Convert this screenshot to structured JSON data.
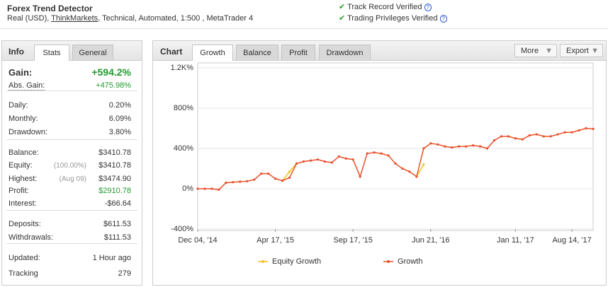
{
  "header": {
    "title": "Forex Trend Detector",
    "details": [
      "Real (USD), ",
      "ThinkMarkets",
      ", Technical, Automated, 1:500 , MetaTrader 4"
    ],
    "badges": [
      "Track Record Verified",
      "Trading Privileges Verified"
    ]
  },
  "stats_panel": {
    "tabs": [
      "Info",
      "Stats",
      "General"
    ],
    "gain": {
      "label": "Gain:",
      "value": "+594.2%"
    },
    "groups": [
      [
        {
          "label": "Abs. Gain:",
          "value": "+475.98%"
        }
      ],
      [
        {
          "label": "Daily:",
          "value": "0.20%"
        },
        {
          "label": "Monthly:",
          "value": "6.09%"
        },
        {
          "label": "Drawdown:",
          "value": "3.80%"
        }
      ],
      [
        {
          "label": "Balance:",
          "value": "$3410.78"
        },
        {
          "label": "Equity:",
          "note": "(100.00%)",
          "value": "$3410.78"
        },
        {
          "label": "Highest:",
          "note": "(Aug 09)",
          "value": "$3474.90"
        },
        {
          "label": "Profit:",
          "value": "$2910.78"
        },
        {
          "label": "Interest:",
          "value": "-$66.64"
        }
      ],
      [
        {
          "label": "Deposits:",
          "value": "$611.53"
        },
        {
          "label": "Withdrawals:",
          "value": "$111.53"
        }
      ],
      [
        {
          "label": "Updated:",
          "value": "1 Hour ago"
        },
        {
          "label": "Tracking",
          "value": "279"
        }
      ]
    ]
  },
  "chart_panel": {
    "label": "Chart",
    "tabs": [
      "Growth",
      "Balance",
      "Profit",
      "Drawdown"
    ],
    "buttons": [
      "More",
      "Export"
    ]
  },
  "chart_data": {
    "type": "line",
    "grid": true,
    "series": [
      {
        "name": "Equity Growth",
        "color": "#f2c21a",
        "values": [
          null,
          null,
          null,
          null,
          null,
          null,
          null,
          null,
          null,
          null,
          null,
          null,
          80,
          170,
          250,
          null,
          null,
          null,
          null,
          null,
          null,
          null,
          null,
          null,
          null,
          null,
          null,
          null,
          null,
          null,
          null,
          120,
          240,
          null,
          null,
          null,
          null,
          null,
          null,
          null,
          null,
          null,
          null,
          null,
          null,
          null,
          null,
          null,
          null,
          null,
          null,
          null,
          null,
          null,
          null,
          null,
          null
        ]
      },
      {
        "name": "Growth",
        "color": "#e8502a",
        "values": [
          0,
          0,
          0,
          -10,
          60,
          65,
          70,
          75,
          90,
          150,
          150,
          100,
          80,
          110,
          250,
          270,
          280,
          290,
          270,
          260,
          320,
          300,
          290,
          120,
          350,
          360,
          350,
          330,
          250,
          200,
          170,
          120,
          400,
          450,
          440,
          420,
          410,
          420,
          420,
          430,
          420,
          400,
          480,
          520,
          520,
          500,
          490,
          530,
          540,
          520,
          520,
          540,
          560,
          560,
          580,
          600,
          594.2
        ]
      }
    ],
    "xlim": [
      0,
      56
    ],
    "xticks": [
      {
        "value": 0,
        "label": "Dec 04, '14"
      },
      {
        "value": 11,
        "label": "Apr 17, '15"
      },
      {
        "value": 22,
        "label": "Sep 17, '15"
      },
      {
        "value": 33,
        "label": "Jun 21, '16"
      },
      {
        "value": 45,
        "label": "Jan 11, '17"
      },
      {
        "value": 53,
        "label": "Aug 14, '17"
      }
    ],
    "ylim": [
      -400,
      1200
    ],
    "yticks": [
      {
        "value": -400,
        "label": "-400%"
      },
      {
        "value": 0,
        "label": "0%"
      },
      {
        "value": 400,
        "label": "400%"
      },
      {
        "value": 800,
        "label": "800%"
      },
      {
        "value": 1200,
        "label": "1.2K%"
      }
    ]
  }
}
